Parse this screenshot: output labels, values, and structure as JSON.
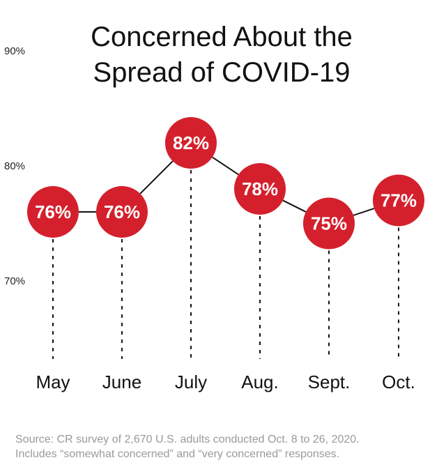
{
  "chart_data": {
    "type": "line",
    "title_lines": [
      "Concerned About the",
      "Spread of COVID-19"
    ],
    "categories": [
      "May",
      "June",
      "July",
      "Aug.",
      "Sept.",
      "Oct."
    ],
    "values": [
      76,
      76,
      82,
      78,
      75,
      77
    ],
    "data_labels": [
      "76%",
      "76%",
      "82%",
      "78%",
      "75%",
      "77%"
    ],
    "y_ticks": [
      {
        "value": 90,
        "label": "90%"
      },
      {
        "value": 80,
        "label": "80%"
      },
      {
        "value": 70,
        "label": "70%"
      }
    ],
    "ylim": [
      70,
      90
    ],
    "grid": false,
    "marker_color": "#d4202c",
    "line_color": "#111111",
    "label_color": "#ffffff"
  },
  "footer": {
    "source_line1": "Source: CR survey of 2,670 U.S. adults conducted Oct. 8 to 26, 2020.",
    "source_line2": "Includes “somewhat concerned” and “very concerned” responses."
  }
}
